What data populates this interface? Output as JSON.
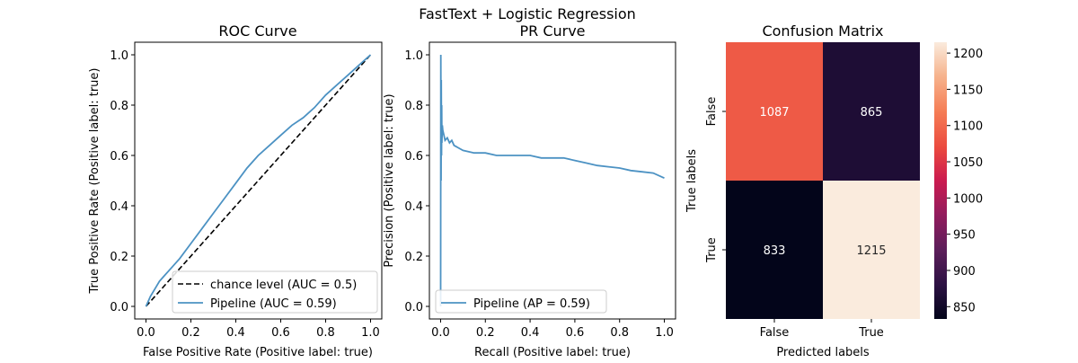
{
  "figure": {
    "suptitle": "FastText + Logistic Regression"
  },
  "colors": {
    "curve": "#4c92c3",
    "chance": "#000000",
    "heat_low": "#03051a",
    "heat_high": "#faebdd",
    "cell_text": "#ffffff"
  },
  "chart_data": [
    {
      "type": "line",
      "title": "ROC Curve",
      "xlabel": "False Positive Rate (Positive label: true)",
      "ylabel": "True Positive Rate (Positive label: true)",
      "xlim": [
        0,
        1
      ],
      "ylim": [
        0,
        1
      ],
      "xticks": [
        "0.0",
        "0.2",
        "0.4",
        "0.6",
        "0.8",
        "1.0"
      ],
      "yticks": [
        "0.0",
        "0.2",
        "0.4",
        "0.6",
        "0.8",
        "1.0"
      ],
      "legend_loc": "lower-right",
      "grid": false,
      "series": [
        {
          "name": "chance level (AUC = 0.5)",
          "style": "dashed",
          "x": [
            0,
            1
          ],
          "y": [
            0,
            1
          ]
        },
        {
          "name": "Pipeline (AUC = 0.59)",
          "style": "solid",
          "x": [
            0,
            0.01,
            0.02,
            0.04,
            0.06,
            0.08,
            0.1,
            0.15,
            0.2,
            0.25,
            0.3,
            0.35,
            0.4,
            0.45,
            0.5,
            0.55,
            0.6,
            0.65,
            0.7,
            0.75,
            0.8,
            0.85,
            0.9,
            0.95,
            1.0
          ],
          "y": [
            0,
            0.02,
            0.04,
            0.07,
            0.1,
            0.12,
            0.14,
            0.19,
            0.25,
            0.31,
            0.37,
            0.43,
            0.49,
            0.55,
            0.6,
            0.64,
            0.68,
            0.72,
            0.75,
            0.79,
            0.84,
            0.88,
            0.92,
            0.96,
            1.0
          ]
        }
      ]
    },
    {
      "type": "line",
      "title": "PR Curve",
      "xlabel": "Recall (Positive label: true)",
      "ylabel": "Precision (Positive label: true)",
      "xlim": [
        0,
        1
      ],
      "ylim": [
        0,
        1
      ],
      "xticks": [
        "0.0",
        "0.2",
        "0.4",
        "0.6",
        "0.8",
        "1.0"
      ],
      "yticks": [
        "0.0",
        "0.2",
        "0.4",
        "0.6",
        "0.8",
        "1.0"
      ],
      "legend_loc": "lower-left",
      "grid": false,
      "series": [
        {
          "name": "Pipeline (AP = 0.59)",
          "style": "solid",
          "x": [
            0,
            0.001,
            0.002,
            0.003,
            0.004,
            0.005,
            0.006,
            0.008,
            0.01,
            0.015,
            0.02,
            0.03,
            0.04,
            0.05,
            0.06,
            0.08,
            0.1,
            0.15,
            0.2,
            0.25,
            0.3,
            0.35,
            0.4,
            0.45,
            0.5,
            0.55,
            0.6,
            0.65,
            0.7,
            0.75,
            0.8,
            0.85,
            0.9,
            0.95,
            1.0
          ],
          "y": [
            0.0,
            1.0,
            0.5,
            0.9,
            0.6,
            0.8,
            0.65,
            0.72,
            0.7,
            0.68,
            0.66,
            0.67,
            0.65,
            0.66,
            0.64,
            0.63,
            0.62,
            0.61,
            0.61,
            0.6,
            0.6,
            0.6,
            0.6,
            0.59,
            0.59,
            0.59,
            0.58,
            0.57,
            0.56,
            0.555,
            0.55,
            0.54,
            0.535,
            0.53,
            0.51
          ]
        }
      ]
    },
    {
      "type": "heatmap",
      "title": "Confusion Matrix",
      "xlabel": "Predicted labels",
      "ylabel": "True labels",
      "x_categories": [
        "False",
        "True"
      ],
      "y_categories": [
        "False",
        "True"
      ],
      "values": [
        [
          1087,
          865
        ],
        [
          833,
          1215
        ]
      ],
      "colorbar_range": [
        833,
        1215
      ],
      "colorbar_ticks": [
        "850",
        "900",
        "950",
        "1000",
        "1050",
        "1100",
        "1150",
        "1200"
      ]
    }
  ]
}
